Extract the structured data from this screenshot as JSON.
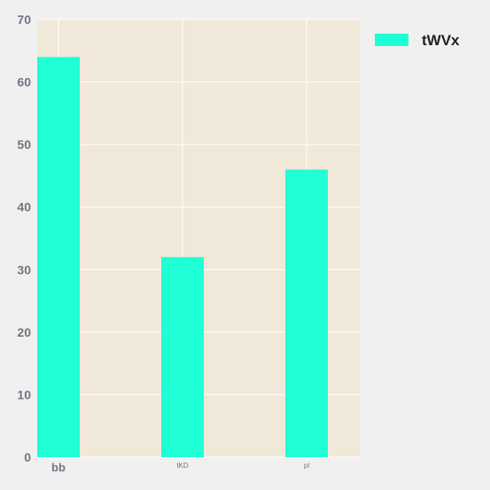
{
  "chart_data": {
    "type": "bar",
    "categories": [
      "bb",
      "tKD",
      "pl"
    ],
    "series": [
      {
        "name": "tWVx",
        "values": [
          64,
          32,
          46
        ]
      }
    ],
    "ylim": [
      0,
      70
    ],
    "yticks": [
      0,
      10,
      20,
      30,
      40,
      50,
      60,
      70
    ],
    "grid": true,
    "legend": "top-right"
  },
  "colors": {
    "bar": "#1effd6",
    "plot_background": "#f0e8d8",
    "figure_background": "#f0f0f0",
    "grid": "#ffffff",
    "tick_text": "#6e7680"
  }
}
